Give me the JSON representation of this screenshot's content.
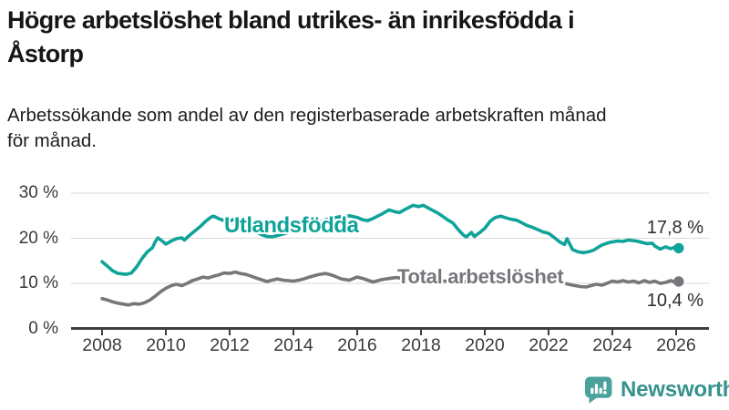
{
  "header": {
    "title": "Högre arbetslöshet bland utrikes- än inrikesfödda i Åstorp",
    "title_lines": [
      "Högre arbetslöshet bland utrikes- än inrikesfödda i",
      "Åstorp"
    ],
    "subtitle": "Arbetssökande som andel av den registerbaserade arbetskraften månad för månad.",
    "subtitle_lines": [
      "Arbetssökande som andel av den registerbaserade arbetskraften månad",
      "för månad."
    ]
  },
  "footer": {
    "brand": "Newsworthy"
  },
  "colors": {
    "teal": "#0fa39a",
    "gray": "#76767b",
    "grid": "#d9d9d9",
    "axis": "#3f3f3f",
    "value_label": "#2d2d2d",
    "logo_teal": "#4ba29c",
    "logo_text": "#35928d",
    "background": "#ffffff"
  },
  "chart_data": {
    "type": "line",
    "title": "Högre arbetslöshet bland utrikes- än inrikesfödda i Åstorp",
    "xlabel": "",
    "ylabel": "Arbetssökande som andel av den registerbaserade arbetskraften",
    "xlim": [
      2007.0,
      2027.0
    ],
    "ylim": [
      0,
      32
    ],
    "grid": true,
    "legend_position": "inline-labels",
    "x_ticks": [
      2008,
      2010,
      2012,
      2014,
      2016,
      2018,
      2020,
      2022,
      2024,
      2026
    ],
    "y_ticks": [
      {
        "label": "30 %",
        "value": 30
      },
      {
        "label": "20 %",
        "value": 20
      },
      {
        "label": "10 %",
        "value": 10
      },
      {
        "label": "0 %",
        "value": 0
      }
    ],
    "series": [
      {
        "name": "Utlandsfödda",
        "color": "#0fa39a",
        "end_label": "17,8 %",
        "end_value": 17.8,
        "points": [
          [
            2008.0,
            14.8
          ],
          [
            2008.17,
            13.8
          ],
          [
            2008.33,
            12.8
          ],
          [
            2008.5,
            12.2
          ],
          [
            2008.75,
            12.0
          ],
          [
            2008.92,
            12.3
          ],
          [
            2009.08,
            13.6
          ],
          [
            2009.25,
            15.5
          ],
          [
            2009.42,
            17.0
          ],
          [
            2009.58,
            17.9
          ],
          [
            2009.67,
            19.3
          ],
          [
            2009.75,
            20.1
          ],
          [
            2009.92,
            19.2
          ],
          [
            2010.0,
            18.7
          ],
          [
            2010.17,
            19.4
          ],
          [
            2010.33,
            19.9
          ],
          [
            2010.5,
            20.1
          ],
          [
            2010.58,
            19.6
          ],
          [
            2010.75,
            20.7
          ],
          [
            2010.92,
            21.7
          ],
          [
            2011.08,
            22.6
          ],
          [
            2011.25,
            23.8
          ],
          [
            2011.42,
            24.7
          ],
          [
            2011.5,
            24.9
          ],
          [
            2011.67,
            24.3
          ],
          [
            2011.83,
            23.9
          ],
          [
            2012.0,
            23.8
          ],
          [
            2012.17,
            24.3
          ],
          [
            2012.33,
            23.9
          ],
          [
            2012.5,
            23.4
          ],
          [
            2012.67,
            22.4
          ],
          [
            2012.83,
            21.5
          ],
          [
            2013.0,
            20.8
          ],
          [
            2013.17,
            20.4
          ],
          [
            2013.33,
            20.3
          ],
          [
            2013.5,
            20.6
          ],
          [
            2013.75,
            21.1
          ],
          [
            2014.0,
            21.7
          ],
          [
            2014.25,
            22.3
          ],
          [
            2014.5,
            22.9
          ],
          [
            2014.75,
            23.5
          ],
          [
            2015.0,
            24.1
          ],
          [
            2015.25,
            24.5
          ],
          [
            2015.5,
            24.8
          ],
          [
            2015.75,
            25.0
          ],
          [
            2016.0,
            24.6
          ],
          [
            2016.17,
            24.1
          ],
          [
            2016.33,
            23.9
          ],
          [
            2016.5,
            24.4
          ],
          [
            2016.75,
            25.3
          ],
          [
            2017.0,
            26.3
          ],
          [
            2017.17,
            25.9
          ],
          [
            2017.33,
            25.7
          ],
          [
            2017.5,
            26.4
          ],
          [
            2017.75,
            27.3
          ],
          [
            2017.92,
            27.0
          ],
          [
            2018.08,
            27.3
          ],
          [
            2018.25,
            26.6
          ],
          [
            2018.5,
            25.7
          ],
          [
            2018.67,
            24.9
          ],
          [
            2018.83,
            24.1
          ],
          [
            2019.0,
            23.4
          ],
          [
            2019.17,
            21.9
          ],
          [
            2019.33,
            20.7
          ],
          [
            2019.42,
            20.3
          ],
          [
            2019.58,
            21.3
          ],
          [
            2019.67,
            20.4
          ],
          [
            2019.83,
            21.2
          ],
          [
            2020.0,
            22.2
          ],
          [
            2020.17,
            23.8
          ],
          [
            2020.33,
            24.6
          ],
          [
            2020.5,
            24.9
          ],
          [
            2020.67,
            24.5
          ],
          [
            2020.83,
            24.2
          ],
          [
            2021.0,
            24.0
          ],
          [
            2021.17,
            23.4
          ],
          [
            2021.33,
            22.8
          ],
          [
            2021.5,
            22.4
          ],
          [
            2021.67,
            21.9
          ],
          [
            2021.83,
            21.4
          ],
          [
            2022.0,
            21.1
          ],
          [
            2022.17,
            20.2
          ],
          [
            2022.33,
            19.3
          ],
          [
            2022.5,
            18.6
          ],
          [
            2022.58,
            19.9
          ],
          [
            2022.75,
            17.5
          ],
          [
            2022.92,
            17.0
          ],
          [
            2023.08,
            16.8
          ],
          [
            2023.25,
            17.0
          ],
          [
            2023.42,
            17.4
          ],
          [
            2023.67,
            18.5
          ],
          [
            2023.92,
            19.1
          ],
          [
            2024.17,
            19.4
          ],
          [
            2024.33,
            19.3
          ],
          [
            2024.5,
            19.6
          ],
          [
            2024.75,
            19.4
          ],
          [
            2025.08,
            18.8
          ],
          [
            2025.25,
            18.9
          ],
          [
            2025.33,
            18.3
          ],
          [
            2025.5,
            17.6
          ],
          [
            2025.67,
            18.1
          ],
          [
            2025.83,
            17.7
          ],
          [
            2026.0,
            18.1
          ],
          [
            2026.08,
            17.8
          ]
        ]
      },
      {
        "name": "Total arbetslöshet",
        "color": "#76767b",
        "end_label": "10,4 %",
        "end_value": 10.4,
        "points": [
          [
            2008.0,
            6.6
          ],
          [
            2008.17,
            6.3
          ],
          [
            2008.33,
            5.9
          ],
          [
            2008.5,
            5.6
          ],
          [
            2008.67,
            5.4
          ],
          [
            2008.83,
            5.2
          ],
          [
            2009.0,
            5.5
          ],
          [
            2009.17,
            5.4
          ],
          [
            2009.33,
            5.7
          ],
          [
            2009.5,
            6.3
          ],
          [
            2009.67,
            7.2
          ],
          [
            2009.83,
            8.1
          ],
          [
            2010.0,
            8.9
          ],
          [
            2010.17,
            9.5
          ],
          [
            2010.33,
            9.8
          ],
          [
            2010.5,
            9.5
          ],
          [
            2010.67,
            10.0
          ],
          [
            2010.83,
            10.6
          ],
          [
            2011.0,
            11.0
          ],
          [
            2011.17,
            11.4
          ],
          [
            2011.33,
            11.2
          ],
          [
            2011.5,
            11.6
          ],
          [
            2011.67,
            11.9
          ],
          [
            2011.83,
            12.3
          ],
          [
            2012.0,
            12.2
          ],
          [
            2012.17,
            12.5
          ],
          [
            2012.33,
            12.2
          ],
          [
            2012.5,
            12.0
          ],
          [
            2012.67,
            11.6
          ],
          [
            2012.83,
            11.2
          ],
          [
            2013.0,
            10.8
          ],
          [
            2013.17,
            10.4
          ],
          [
            2013.33,
            10.7
          ],
          [
            2013.5,
            11.0
          ],
          [
            2013.67,
            10.7
          ],
          [
            2013.83,
            10.6
          ],
          [
            2014.0,
            10.5
          ],
          [
            2014.17,
            10.7
          ],
          [
            2014.33,
            11.0
          ],
          [
            2014.5,
            11.4
          ],
          [
            2014.75,
            11.9
          ],
          [
            2015.0,
            12.2
          ],
          [
            2015.17,
            11.9
          ],
          [
            2015.33,
            11.5
          ],
          [
            2015.5,
            11.0
          ],
          [
            2015.75,
            10.7
          ],
          [
            2016.0,
            11.4
          ],
          [
            2016.17,
            11.1
          ],
          [
            2016.33,
            10.7
          ],
          [
            2016.5,
            10.3
          ],
          [
            2016.75,
            10.8
          ],
          [
            2017.0,
            11.1
          ],
          [
            2017.25,
            11.3
          ],
          [
            2017.5,
            11.0
          ],
          [
            2017.75,
            11.2
          ],
          [
            2018.0,
            11.0
          ],
          [
            2018.25,
            10.8
          ],
          [
            2018.5,
            10.6
          ],
          [
            2018.75,
            10.5
          ],
          [
            2019.0,
            10.4
          ],
          [
            2019.25,
            10.3
          ],
          [
            2019.5,
            10.5
          ],
          [
            2019.75,
            10.8
          ],
          [
            2020.0,
            11.0
          ],
          [
            2020.25,
            12.0
          ],
          [
            2020.5,
            12.3
          ],
          [
            2020.75,
            12.1
          ],
          [
            2021.0,
            11.9
          ],
          [
            2021.25,
            11.6
          ],
          [
            2021.5,
            11.3
          ],
          [
            2021.75,
            11.0
          ],
          [
            2022.0,
            10.7
          ],
          [
            2022.25,
            10.3
          ],
          [
            2022.5,
            10.0
          ],
          [
            2022.75,
            9.6
          ],
          [
            2023.0,
            9.3
          ],
          [
            2023.17,
            9.2
          ],
          [
            2023.33,
            9.5
          ],
          [
            2023.5,
            9.8
          ],
          [
            2023.67,
            9.6
          ],
          [
            2023.83,
            10.0
          ],
          [
            2024.0,
            10.5
          ],
          [
            2024.17,
            10.3
          ],
          [
            2024.33,
            10.6
          ],
          [
            2024.5,
            10.3
          ],
          [
            2024.67,
            10.5
          ],
          [
            2024.83,
            10.1
          ],
          [
            2025.0,
            10.6
          ],
          [
            2025.17,
            10.2
          ],
          [
            2025.33,
            10.5
          ],
          [
            2025.5,
            10.0
          ],
          [
            2025.67,
            10.2
          ],
          [
            2025.83,
            10.6
          ],
          [
            2026.0,
            10.2
          ],
          [
            2026.08,
            10.4
          ]
        ]
      }
    ]
  }
}
